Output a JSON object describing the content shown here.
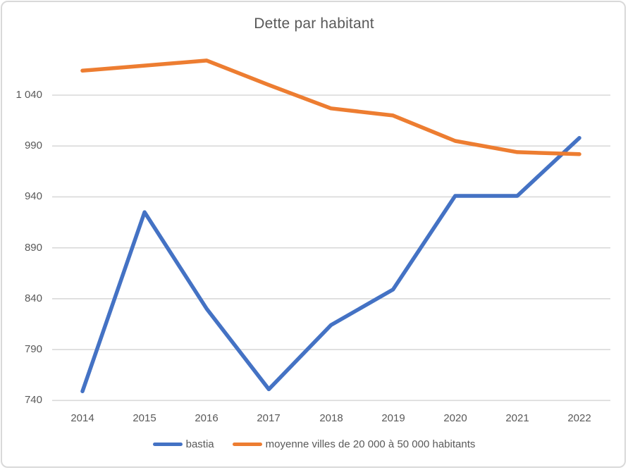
{
  "chart_data": {
    "type": "line",
    "title": "Dette par habitant",
    "categories": [
      "2014",
      "2015",
      "2016",
      "2017",
      "2018",
      "2019",
      "2020",
      "2021",
      "2022"
    ],
    "series": [
      {
        "name": "bastia",
        "color": "#4472C4",
        "values": [
          749,
          925,
          830,
          751,
          814,
          849,
          941,
          941,
          998
        ]
      },
      {
        "name": "moyenne villes de 20 000 à 50 000 habitants",
        "color": "#ED7D31",
        "values": [
          1064,
          1069,
          1074,
          1050,
          1027,
          1020,
          995,
          984,
          982
        ]
      }
    ],
    "y_axis": {
      "ticks": [
        {
          "value": 740,
          "label": "740"
        },
        {
          "value": 790,
          "label": "790"
        },
        {
          "value": 840,
          "label": "840"
        },
        {
          "value": 890,
          "label": "890"
        },
        {
          "value": 940,
          "label": "940"
        },
        {
          "value": 990,
          "label": "990"
        },
        {
          "value": 1040,
          "label": "1 040"
        }
      ]
    },
    "xlabel": "",
    "ylabel": "",
    "ylim": [
      740,
      1090
    ],
    "grid": "horizontal",
    "legend_position": "bottom",
    "colors": {
      "text": "#595959",
      "gridline": "#D9D9D9",
      "border": "#D9D9D9",
      "background": "#FFFFFF"
    }
  }
}
